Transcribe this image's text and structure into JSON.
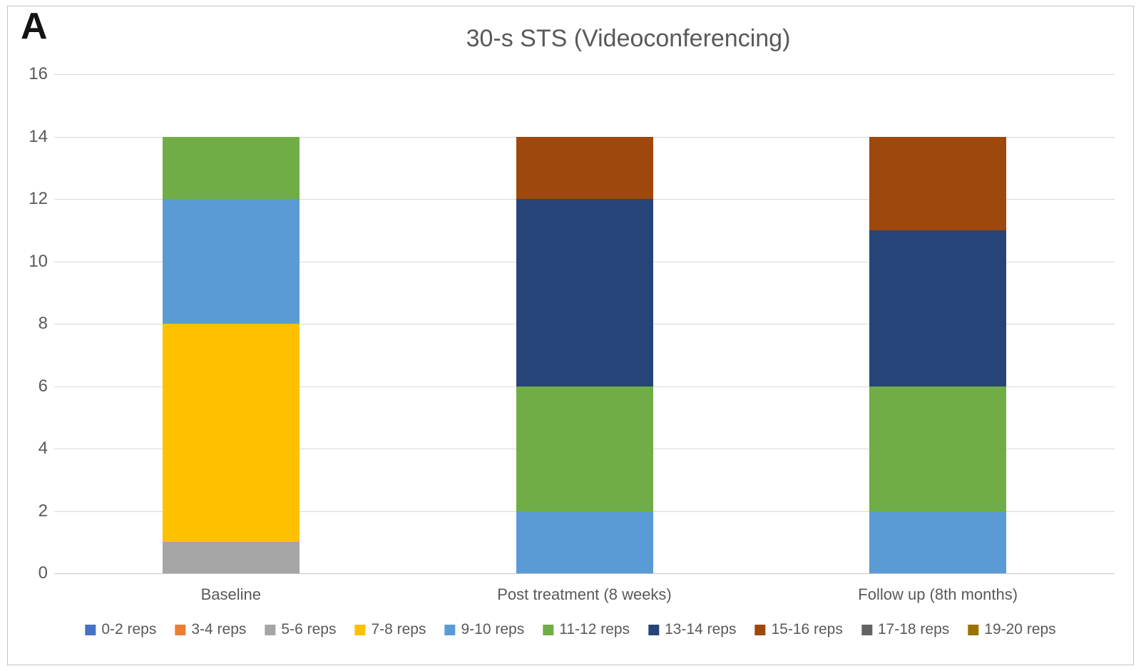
{
  "panel_label": "A",
  "chart_data": {
    "type": "bar",
    "stacked": true,
    "title": "30-s STS (Videoconferencing)",
    "categories": [
      "Baseline",
      "Post treatment (8 weeks)",
      "Follow up (8th months)"
    ],
    "series": [
      {
        "name": "0-2 reps",
        "color": "#4472C4",
        "values": [
          0,
          0,
          0
        ]
      },
      {
        "name": "3-4 reps",
        "color": "#ED7D31",
        "values": [
          0,
          0,
          0
        ]
      },
      {
        "name": "5-6 reps",
        "color": "#A5A5A5",
        "values": [
          1,
          0,
          0
        ]
      },
      {
        "name": "7-8 reps",
        "color": "#FFC000",
        "values": [
          7,
          0,
          0
        ]
      },
      {
        "name": "9-10 reps",
        "color": "#5B9BD5",
        "values": [
          4,
          2,
          2
        ]
      },
      {
        "name": "11-12 reps",
        "color": "#70AD47",
        "values": [
          2,
          4,
          4
        ]
      },
      {
        "name": "13-14 reps",
        "color": "#264478",
        "values": [
          0,
          6,
          5
        ]
      },
      {
        "name": "15-16 reps",
        "color": "#9E480E",
        "values": [
          0,
          2,
          3
        ]
      },
      {
        "name": "17-18 reps",
        "color": "#636363",
        "values": [
          0,
          0,
          0
        ]
      },
      {
        "name": "19-20 reps",
        "color": "#997300",
        "values": [
          0,
          0,
          0
        ]
      }
    ],
    "totals_per_category": [
      14,
      14,
      14
    ],
    "ylim": [
      0,
      16
    ],
    "yticks": [
      0,
      2,
      4,
      6,
      8,
      10,
      12,
      14,
      16
    ],
    "xlabel": "",
    "ylabel": "",
    "grid": true,
    "legend_position": "bottom"
  }
}
